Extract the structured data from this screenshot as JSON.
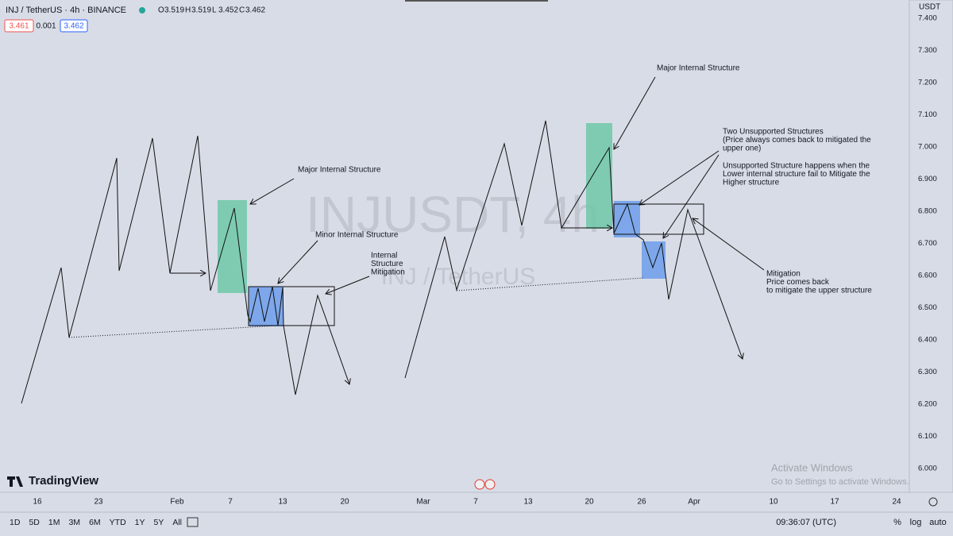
{
  "header": {
    "symbol": "INJ / TetherUS · 4h · BINANCE",
    "ohlc": [
      {
        "label": "O",
        "value": "3.519"
      },
      {
        "label": "H",
        "value": "3.519"
      },
      {
        "label": "L",
        "value": "3.452"
      },
      {
        "label": "C",
        "value": "3.462"
      }
    ],
    "bid": "3.461",
    "spread": "0.001",
    "ask": "3.462"
  },
  "watermark": {
    "symbol": "INJUSDT, 4h",
    "name": "INJ / TetherUS"
  },
  "price_axis": {
    "currency": "USDT",
    "ticks": [
      "7.400",
      "7.300",
      "7.200",
      "7.100",
      "7.000",
      "6.900",
      "6.800",
      "6.700",
      "6.600",
      "6.500",
      "6.400",
      "6.300",
      "6.200",
      "6.100",
      "6.000"
    ]
  },
  "time_axis": [
    "16",
    "23",
    "Feb",
    "7",
    "13",
    "20",
    "Mar",
    "7",
    "13",
    "20",
    "26",
    "Apr",
    "10",
    "17",
    "24"
  ],
  "annotations": [
    [
      "Major Internal Structure"
    ],
    [
      "Minor  Internal Structure"
    ],
    [
      "Internal",
      "Structure",
      "Mitigation"
    ],
    [
      "Major Internal Structure"
    ],
    [
      "Two Unsupported Structures",
      "(Price always comes back to mitigated the",
      "upper one)"
    ],
    [
      "Unsupported Structure happens when the",
      "Lower internal structure fail to Mitigate the",
      "Higher structure"
    ],
    [
      "Mitigation",
      "Price comes back",
      "to mitigate the upper structure"
    ]
  ],
  "logo": "TradingView",
  "toolbar": {
    "ranges": [
      "1D",
      "5D",
      "1M",
      "3M",
      "6M",
      "YTD",
      "1Y",
      "5Y",
      "All"
    ],
    "clock": "09:36:07 (UTC)",
    "percent": "%",
    "log": "log",
    "auto": "auto"
  },
  "os_notice": [
    "Activate Windows",
    "Go to Settings to activate Windows."
  ]
}
